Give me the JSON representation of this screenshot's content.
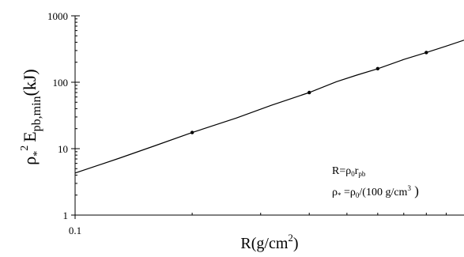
{
  "chart_data": {
    "type": "line",
    "title": "",
    "xscale": "log",
    "yscale": "log",
    "xlim": [
      0.1,
      1.0
    ],
    "ylim": [
      1,
      1000
    ],
    "grid": false,
    "x_ticks": [
      {
        "value": 0.1,
        "label": "0.1"
      }
    ],
    "y_ticks": [
      {
        "value": 1,
        "label": "1"
      },
      {
        "value": 10,
        "label": "10"
      },
      {
        "value": 100,
        "label": "100"
      },
      {
        "value": 1000,
        "label": "1000"
      }
    ],
    "xlabel": {
      "base": "R(g/cm",
      "sup": "2",
      "tail": ")"
    },
    "ylabel": {
      "rho": "ρ",
      "star": "*",
      "sq": "2",
      "e": "E",
      "sub": "pb,min",
      "unit": "(kJ)"
    },
    "series": [
      {
        "line_x": [
          0.1,
          0.13,
          0.16,
          0.2,
          0.26,
          0.32,
          0.4,
          0.47,
          0.53,
          0.6,
          0.7,
          0.8,
          0.9,
          1.0
        ],
        "line_y": [
          4.3,
          7.2,
          11.0,
          17.5,
          29.0,
          45.0,
          70.0,
          102.0,
          128.0,
          160.0,
          220.0,
          280.0,
          350.0,
          430.0
        ],
        "markers_x": [
          0.2,
          0.4,
          0.6,
          0.8
        ],
        "markers_y": [
          17.5,
          70.0,
          160.0,
          280.0
        ]
      }
    ],
    "annotations": {
      "line1": {
        "r": "R=ρ",
        "sub0": "0",
        "r2": "r",
        "subpb": "pb"
      },
      "line2": {
        "rho": "ρ",
        "star": "*",
        "eq": " =ρ",
        "sub0": "0",
        "rest": "/(100 g/cm",
        "sup3": "3",
        "close": " )"
      }
    }
  }
}
